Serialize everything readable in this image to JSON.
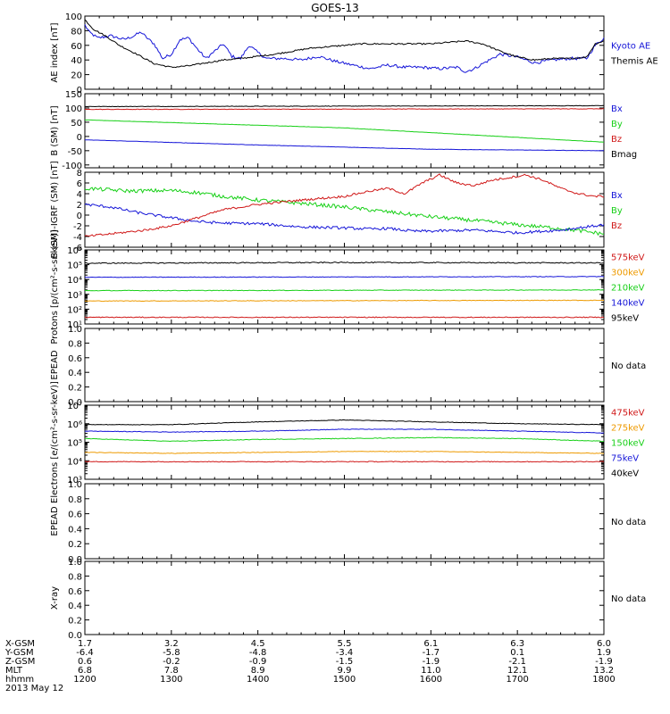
{
  "title": "GOES-13",
  "date_label": "2013 May 12",
  "hours": [
    12,
    18
  ],
  "x_ticks": [
    {
      "hour": 12,
      "label": "1200"
    },
    {
      "hour": 13,
      "label": "1300"
    },
    {
      "hour": 14,
      "label": "1400"
    },
    {
      "hour": 15,
      "label": "1500"
    },
    {
      "hour": 16,
      "label": "1600"
    },
    {
      "hour": 17,
      "label": "1700"
    },
    {
      "hour": 18,
      "label": "1800"
    }
  ],
  "orbit_rows": [
    {
      "name": "X-GSM",
      "values": [
        "1.7",
        "3.2",
        "4.5",
        "5.5",
        "6.1",
        "6.3",
        "6.0"
      ]
    },
    {
      "name": "Y-GSM",
      "values": [
        "-6.4",
        "-5.8",
        "-4.8",
        "-3.4",
        "-1.7",
        "0.1",
        "1.9"
      ]
    },
    {
      "name": "Z-GSM",
      "values": [
        "0.6",
        "-0.2",
        "-0.9",
        "-1.5",
        "-1.9",
        "-2.1",
        "-1.9"
      ]
    },
    {
      "name": "MLT",
      "values": [
        "6.8",
        "7.8",
        "8.9",
        "9.9",
        "11.0",
        "12.1",
        "13.2"
      ]
    },
    {
      "name": "hhmm",
      "values": [
        "1200",
        "1300",
        "1400",
        "1500",
        "1600",
        "1700",
        "1800"
      ]
    }
  ],
  "colors": {
    "black": "#000000",
    "blue": "#1515d8",
    "green": "#18d018",
    "red": "#d01818",
    "orange": "#ee9a00"
  },
  "chart_data": [
    {
      "id": "ae",
      "type": "line",
      "ylabel": "AE index [nT]",
      "yscale": "linear",
      "ylim": [
        0,
        100
      ],
      "yticks": [
        {
          "v": 0,
          "label": "0"
        },
        {
          "v": 20,
          "label": "20"
        },
        {
          "v": 40,
          "label": "40"
        },
        {
          "v": 60,
          "label": "60"
        },
        {
          "v": 80,
          "label": "80"
        },
        {
          "v": 100,
          "label": "100"
        }
      ],
      "legend": [
        {
          "label": "Kyoto AE",
          "color": "blue"
        },
        {
          "label": "Themis AE",
          "color": "black"
        }
      ],
      "series": [
        {
          "name": "Kyoto AE",
          "color": "blue",
          "noise": 2,
          "x": [
            12.0,
            12.05,
            12.15,
            12.3,
            12.45,
            12.55,
            12.65,
            12.7,
            12.8,
            12.9,
            13.0,
            13.1,
            13.2,
            13.3,
            13.4,
            13.5,
            13.6,
            13.7,
            13.8,
            13.9,
            14.0,
            14.1,
            14.3,
            14.5,
            14.7,
            14.9,
            15.1,
            15.3,
            15.5,
            15.7,
            15.9,
            16.1,
            16.3,
            16.4,
            16.5,
            16.6,
            16.8,
            17.0,
            17.2,
            17.4,
            17.6,
            17.8,
            17.9,
            18.0
          ],
          "y": [
            88,
            78,
            70,
            73,
            68,
            72,
            78,
            72,
            62,
            42,
            48,
            68,
            70,
            55,
            42,
            52,
            62,
            45,
            42,
            60,
            50,
            42,
            42,
            40,
            45,
            38,
            33,
            28,
            33,
            30,
            30,
            28,
            30,
            24,
            28,
            35,
            48,
            44,
            36,
            40,
            42,
            42,
            60,
            70
          ]
        },
        {
          "name": "Themis AE",
          "color": "black",
          "noise": 1,
          "x": [
            12.0,
            12.1,
            12.25,
            12.4,
            12.6,
            12.8,
            13.0,
            13.2,
            13.4,
            13.6,
            13.8,
            14.0,
            14.2,
            14.4,
            14.6,
            14.8,
            15.0,
            15.2,
            15.4,
            15.6,
            15.8,
            16.0,
            16.2,
            16.4,
            16.6,
            16.8,
            17.0,
            17.2,
            17.4,
            17.6,
            17.8,
            17.9,
            18.0
          ],
          "y": [
            95,
            82,
            72,
            60,
            48,
            35,
            30,
            32,
            36,
            40,
            42,
            45,
            48,
            52,
            56,
            58,
            60,
            62,
            62,
            62,
            62,
            62,
            64,
            66,
            62,
            52,
            44,
            40,
            42,
            42,
            44,
            62,
            66
          ]
        }
      ]
    },
    {
      "id": "b",
      "type": "line",
      "ylabel": "B (SM) [nT]",
      "yscale": "linear",
      "ylim": [
        -110,
        150
      ],
      "yticks": [
        {
          "v": -100,
          "label": "-100"
        },
        {
          "v": -50,
          "label": "-50"
        },
        {
          "v": 0,
          "label": "0"
        },
        {
          "v": 50,
          "label": "50"
        },
        {
          "v": 100,
          "label": "100"
        },
        {
          "v": 150,
          "label": "150"
        }
      ],
      "legend": [
        {
          "label": "Bx",
          "color": "blue"
        },
        {
          "label": "By",
          "color": "green"
        },
        {
          "label": "Bz",
          "color": "red"
        },
        {
          "label": "Bmag",
          "color": "black"
        }
      ],
      "series": [
        {
          "name": "Bmag",
          "color": "black",
          "noise": 0.8,
          "x": [
            12,
            18
          ],
          "y": [
            105,
            108
          ]
        },
        {
          "name": "Bz",
          "color": "red",
          "noise": 0.8,
          "x": [
            12,
            18
          ],
          "y": [
            95,
            97
          ]
        },
        {
          "name": "By",
          "color": "green",
          "noise": 0.5,
          "x": [
            12,
            15,
            18
          ],
          "y": [
            58,
            30,
            -20
          ]
        },
        {
          "name": "Bx",
          "color": "blue",
          "noise": 0.5,
          "x": [
            12,
            14,
            16,
            18
          ],
          "y": [
            -12,
            -30,
            -45,
            -50
          ]
        }
      ]
    },
    {
      "id": "bdiff",
      "type": "line",
      "ylabel": "B (SM)-IGRF (SM) [nT]",
      "yscale": "linear",
      "ylim": [
        -6,
        8
      ],
      "yticks": [
        {
          "v": -6,
          "label": "-6"
        },
        {
          "v": -4,
          "label": "-4"
        },
        {
          "v": -2,
          "label": "-2"
        },
        {
          "v": 0,
          "label": "0"
        },
        {
          "v": 2,
          "label": "2"
        },
        {
          "v": 4,
          "label": "4"
        },
        {
          "v": 6,
          "label": "6"
        },
        {
          "v": 8,
          "label": "8"
        }
      ],
      "legend": [
        {
          "label": "Bx",
          "color": "blue"
        },
        {
          "label": "By",
          "color": "green"
        },
        {
          "label": "Bz",
          "color": "red"
        }
      ],
      "series": [
        {
          "name": "By",
          "color": "green",
          "noise": 0.35,
          "x": [
            12.0,
            12.5,
            13.0,
            13.3,
            13.6,
            14.0,
            14.5,
            15.0,
            15.5,
            16.0,
            16.5,
            17.0,
            17.5,
            18.0
          ],
          "y": [
            5.0,
            4.5,
            4.6,
            4.2,
            3.5,
            2.8,
            2.2,
            1.5,
            0.6,
            -0.3,
            -1.0,
            -1.8,
            -2.5,
            -3.5
          ]
        },
        {
          "name": "Bx",
          "color": "blue",
          "noise": 0.25,
          "x": [
            12.0,
            12.3,
            12.6,
            13.0,
            13.3,
            13.6,
            14.0,
            14.5,
            15.0,
            15.3,
            15.5,
            15.8,
            16.0,
            16.5,
            17.0,
            17.5,
            18.0
          ],
          "y": [
            2.0,
            1.5,
            0.5,
            -0.5,
            -1.2,
            -1.5,
            -1.6,
            -2.2,
            -2.4,
            -2.6,
            -2.5,
            -3.0,
            -3.0,
            -2.8,
            -3.3,
            -2.8,
            -1.8
          ]
        },
        {
          "name": "Bz",
          "color": "red",
          "noise": 0.2,
          "x": [
            12.0,
            12.3,
            12.7,
            13.0,
            13.3,
            13.6,
            14.0,
            14.5,
            15.0,
            15.3,
            15.5,
            15.7,
            15.9,
            16.1,
            16.3,
            16.5,
            16.7,
            16.9,
            17.1,
            17.3,
            17.5,
            17.7,
            17.9,
            18.0
          ],
          "y": [
            -4.0,
            -3.5,
            -2.8,
            -2.0,
            -0.5,
            1.0,
            2.0,
            2.8,
            3.5,
            4.5,
            5.0,
            4.0,
            6.0,
            7.5,
            6.0,
            5.5,
            6.5,
            7.0,
            7.5,
            6.5,
            5.0,
            4.0,
            3.5,
            3.5
          ]
        }
      ]
    },
    {
      "id": "protons",
      "type": "line",
      "ylabel": "Protons [p/(cm²-s-sr-keV)]",
      "yscale": "log",
      "ylim": [
        1,
        6
      ],
      "yticks": [
        {
          "v": 1,
          "label": "10¹"
        },
        {
          "v": 2,
          "label": "10²"
        },
        {
          "v": 3,
          "label": "10³"
        },
        {
          "v": 4,
          "label": "10⁴"
        },
        {
          "v": 5,
          "label": "10⁵"
        },
        {
          "v": 6,
          "label": "10⁶"
        }
      ],
      "legend": [
        {
          "label": "575keV",
          "color": "red"
        },
        {
          "label": "300keV",
          "color": "orange"
        },
        {
          "label": "210keV",
          "color": "green"
        },
        {
          "label": "140keV",
          "color": "blue"
        },
        {
          "label": "95keV",
          "color": "black"
        }
      ],
      "series": [
        {
          "name": "95keV",
          "color": "black",
          "noise": 0.035,
          "x": [
            12,
            15,
            18
          ],
          "y": [
            5.1,
            5.15,
            5.12
          ]
        },
        {
          "name": "140keV",
          "color": "blue",
          "noise": 0.02,
          "x": [
            12,
            18
          ],
          "y": [
            4.15,
            4.2
          ]
        },
        {
          "name": "210keV",
          "color": "green",
          "noise": 0.02,
          "x": [
            12,
            18
          ],
          "y": [
            3.25,
            3.3
          ]
        },
        {
          "name": "300keV",
          "color": "orange",
          "noise": 0.02,
          "x": [
            12,
            18
          ],
          "y": [
            2.55,
            2.6
          ]
        },
        {
          "name": "575keV",
          "color": "red",
          "noise": 0.03,
          "x": [
            12,
            18
          ],
          "y": [
            1.45,
            1.45
          ]
        }
      ]
    },
    {
      "id": "epead1",
      "type": "line",
      "ylabel": "EPEAD",
      "yscale": "linear",
      "ylim": [
        0,
        1
      ],
      "yticks": [
        {
          "v": 0,
          "label": "0.0"
        },
        {
          "v": 0.2,
          "label": "0.2"
        },
        {
          "v": 0.4,
          "label": "0.4"
        },
        {
          "v": 0.6,
          "label": "0.6"
        },
        {
          "v": 0.8,
          "label": "0.8"
        },
        {
          "v": 1.0,
          "label": "1.0"
        }
      ],
      "legend": [
        {
          "label": "No data",
          "color": "black"
        }
      ],
      "series": []
    },
    {
      "id": "electrons",
      "type": "line",
      "ylabel": "Electrons [e/(cm²-s-sr-keV)]",
      "yscale": "log",
      "ylim": [
        3,
        7
      ],
      "yticks": [
        {
          "v": 3,
          "label": "10³"
        },
        {
          "v": 4,
          "label": "10⁴"
        },
        {
          "v": 5,
          "label": "10⁵"
        },
        {
          "v": 6,
          "label": "10⁶"
        },
        {
          "v": 7,
          "label": "10⁷"
        }
      ],
      "legend": [
        {
          "label": "475keV",
          "color": "red"
        },
        {
          "label": "275keV",
          "color": "orange"
        },
        {
          "label": "150keV",
          "color": "green"
        },
        {
          "label": "75keV",
          "color": "blue"
        },
        {
          "label": "40keV",
          "color": "black"
        }
      ],
      "series": [
        {
          "name": "40keV",
          "color": "black",
          "noise": 0.015,
          "x": [
            12,
            13,
            14,
            15,
            16,
            17,
            18
          ],
          "y": [
            5.95,
            5.95,
            6.1,
            6.2,
            6.1,
            6.0,
            5.95
          ]
        },
        {
          "name": "75keV",
          "color": "blue",
          "noise": 0.015,
          "x": [
            12,
            13,
            14,
            15,
            16,
            17,
            18
          ],
          "y": [
            5.6,
            5.55,
            5.6,
            5.7,
            5.7,
            5.6,
            5.5
          ]
        },
        {
          "name": "150keV",
          "color": "green",
          "noise": 0.015,
          "x": [
            12,
            13,
            14,
            15,
            16,
            17,
            18
          ],
          "y": [
            5.2,
            5.05,
            5.15,
            5.2,
            5.25,
            5.2,
            5.05
          ]
        },
        {
          "name": "275keV",
          "color": "orange",
          "noise": 0.015,
          "x": [
            12,
            13,
            14,
            15,
            16,
            17,
            18
          ],
          "y": [
            4.45,
            4.4,
            4.45,
            4.5,
            4.5,
            4.45,
            4.4
          ]
        },
        {
          "name": "475keV",
          "color": "red",
          "noise": 0.02,
          "x": [
            12,
            18
          ],
          "y": [
            3.95,
            3.95
          ]
        }
      ]
    },
    {
      "id": "epead2",
      "type": "line",
      "ylabel": "EPEAD",
      "yscale": "linear",
      "ylim": [
        0,
        1
      ],
      "yticks": [
        {
          "v": 0,
          "label": "0.0"
        },
        {
          "v": 0.2,
          "label": "0.2"
        },
        {
          "v": 0.4,
          "label": "0.4"
        },
        {
          "v": 0.6,
          "label": "0.6"
        },
        {
          "v": 0.8,
          "label": "0.8"
        },
        {
          "v": 1.0,
          "label": "1.0"
        }
      ],
      "legend": [
        {
          "label": "No data",
          "color": "black"
        }
      ],
      "series": []
    },
    {
      "id": "xray",
      "type": "line",
      "ylabel": "X-ray",
      "yscale": "linear",
      "ylim": [
        0,
        1
      ],
      "yticks": [
        {
          "v": 0,
          "label": "0.0"
        },
        {
          "v": 0.2,
          "label": "0.2"
        },
        {
          "v": 0.4,
          "label": "0.4"
        },
        {
          "v": 0.6,
          "label": "0.6"
        },
        {
          "v": 0.8,
          "label": "0.8"
        },
        {
          "v": 1.0,
          "label": "1.0"
        }
      ],
      "legend": [
        {
          "label": "No data",
          "color": "black"
        }
      ],
      "series": []
    }
  ]
}
